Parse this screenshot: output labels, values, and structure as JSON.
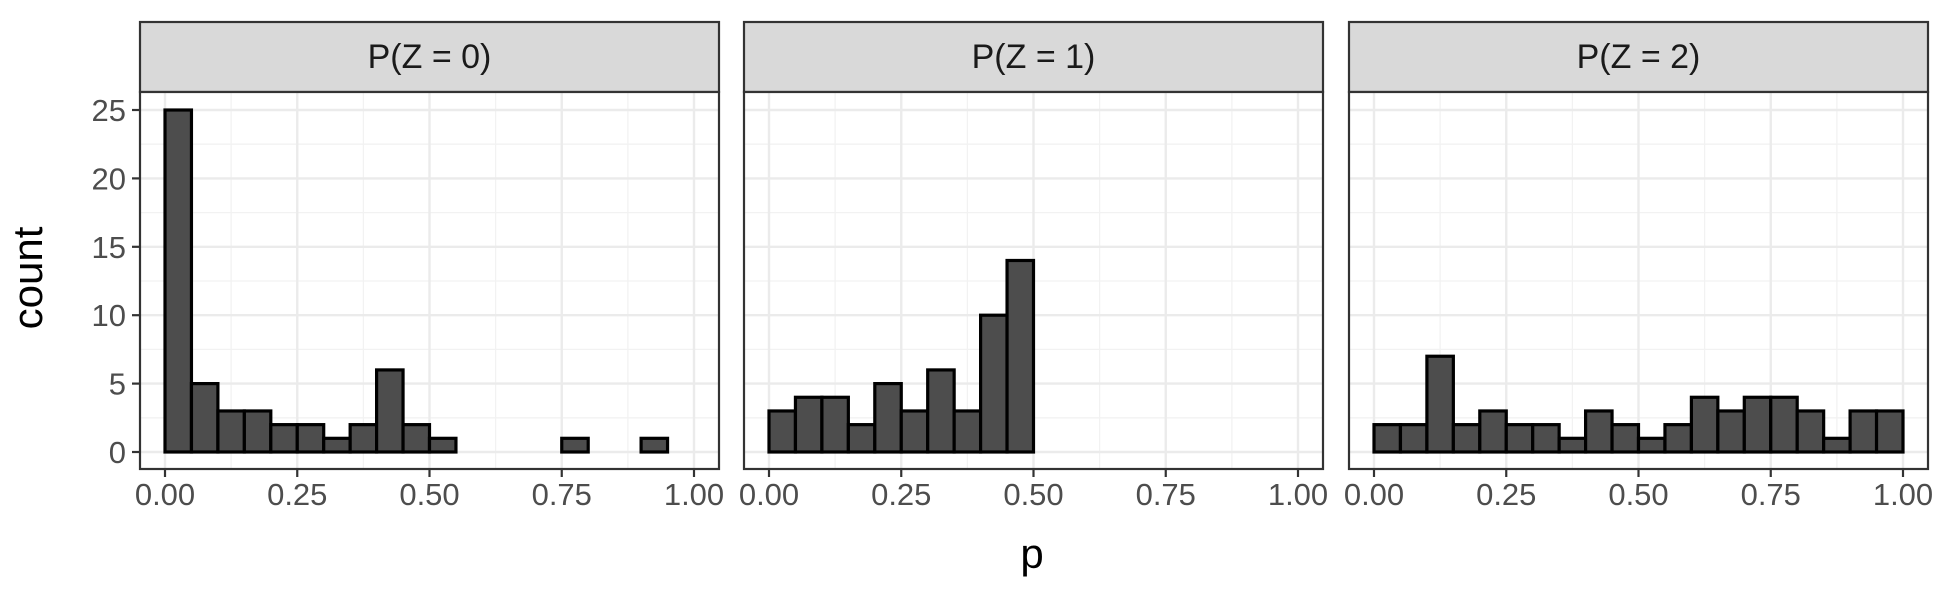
{
  "chart_data": {
    "type": "bar",
    "subtype": "histogram-faceted",
    "xlabel": "p",
    "ylabel": "count",
    "xlim": [
      0,
      1
    ],
    "ylim": [
      0,
      25
    ],
    "x_ticks": [
      "0.00",
      "0.25",
      "0.50",
      "0.75",
      "1.00"
    ],
    "y_ticks": [
      "0",
      "5",
      "10",
      "15",
      "20",
      "25"
    ],
    "grid": true,
    "bin_width": 0.05,
    "bar_fill": "#4d4d4d",
    "bar_outline": "#000000",
    "strip_fill": "#d9d9d9",
    "panels": [
      {
        "strip_label": "P(Z = 0)",
        "bin_starts": [
          0.0,
          0.05,
          0.1,
          0.15,
          0.2,
          0.25,
          0.3,
          0.35,
          0.4,
          0.45,
          0.5,
          0.55,
          0.6,
          0.65,
          0.7,
          0.75,
          0.8,
          0.85,
          0.9,
          0.95
        ],
        "counts": [
          25,
          5,
          3,
          3,
          2,
          2,
          1,
          2,
          6,
          2,
          1,
          0,
          0,
          0,
          0,
          1,
          0,
          0,
          1,
          0
        ]
      },
      {
        "strip_label": "P(Z = 1)",
        "bin_starts": [
          0.0,
          0.05,
          0.1,
          0.15,
          0.2,
          0.25,
          0.3,
          0.35,
          0.4,
          0.45,
          0.5,
          0.55,
          0.6,
          0.65,
          0.7,
          0.75,
          0.8,
          0.85,
          0.9,
          0.95
        ],
        "counts": [
          3,
          4,
          4,
          2,
          5,
          3,
          6,
          3,
          10,
          14,
          0,
          0,
          0,
          0,
          0,
          0,
          0,
          0,
          0,
          0
        ]
      },
      {
        "strip_label": "P(Z = 2)",
        "bin_starts": [
          0.0,
          0.05,
          0.1,
          0.15,
          0.2,
          0.25,
          0.3,
          0.35,
          0.4,
          0.45,
          0.5,
          0.55,
          0.6,
          0.65,
          0.7,
          0.75,
          0.8,
          0.85,
          0.9,
          0.95
        ],
        "counts": [
          2,
          2,
          7,
          2,
          3,
          2,
          2,
          1,
          3,
          2,
          1,
          2,
          4,
          3,
          4,
          4,
          3,
          1,
          3,
          3
        ]
      }
    ]
  }
}
